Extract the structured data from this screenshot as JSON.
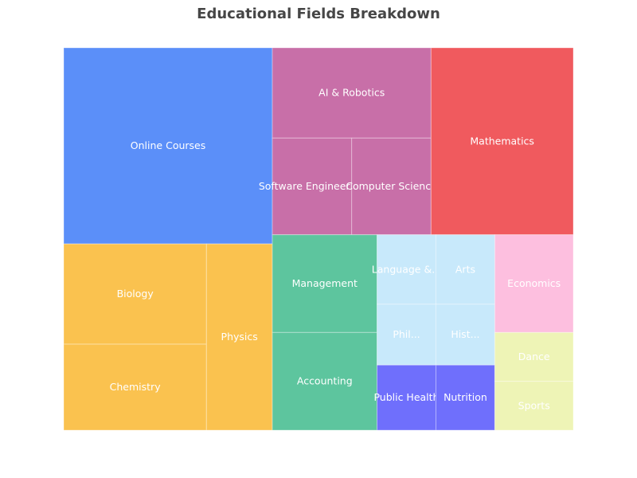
{
  "chart_data": {
    "type": "treemap",
    "title": "Educational Fields Breakdown",
    "groups": [
      {
        "color": "#5B8FF9",
        "items": [
          {
            "name": "Online Courses",
            "label": "Online Courses",
            "value": 800
          }
        ]
      },
      {
        "color": "#FAC24F",
        "items": [
          {
            "name": "Biology",
            "label": "Biology",
            "value": 280
          },
          {
            "name": "Chemistry",
            "label": "Chemistry",
            "value": 240
          },
          {
            "name": "Physics",
            "label": "Physics",
            "value": 240
          }
        ]
      },
      {
        "color": "#C86FA8",
        "items": [
          {
            "name": "AI & Robotics",
            "label": "AI & Robotics",
            "value": 280
          },
          {
            "name": "Software Engineering",
            "label": "Software Engineering",
            "value": 150
          },
          {
            "name": "Computer Science",
            "label": "Computer Science",
            "value": 150
          }
        ]
      },
      {
        "color": "#F05A5E",
        "items": [
          {
            "name": "Mathematics",
            "label": "Mathematics",
            "value": 520
          }
        ]
      },
      {
        "color": "#5DC59E",
        "items": [
          {
            "name": "Management",
            "label": "Management",
            "value": 200
          },
          {
            "name": "Accounting",
            "label": "Accounting",
            "value": 200
          }
        ]
      },
      {
        "color": "#C8E9FB",
        "items": [
          {
            "name": "Language & Literature",
            "label": "Language &...",
            "value": 80
          },
          {
            "name": "Arts",
            "label": "Arts",
            "value": 80
          },
          {
            "name": "Philosophy",
            "label": "Phil...",
            "value": 70
          },
          {
            "name": "History",
            "label": "Hist...",
            "value": 70
          }
        ]
      },
      {
        "color": "#6F6FFC",
        "items": [
          {
            "name": "Public Health",
            "label": "Public Health",
            "value": 75
          },
          {
            "name": "Nutrition",
            "label": "Nutrition",
            "value": 75
          }
        ]
      },
      {
        "color": "#FDBFDF",
        "items": [
          {
            "name": "Economics",
            "label": "Economics",
            "value": 150
          }
        ]
      },
      {
        "color": "#EEF4B6",
        "items": [
          {
            "name": "Dance",
            "label": "Dance",
            "value": 75
          },
          {
            "name": "Sports",
            "label": "Sports",
            "value": 75
          }
        ]
      }
    ]
  }
}
